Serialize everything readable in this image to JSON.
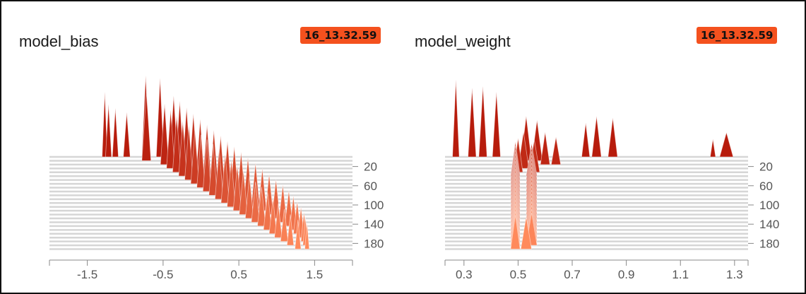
{
  "colors": {
    "old": "#b71c0c",
    "new": "#ff8a5c",
    "baseline": "#d6d6d6",
    "axis": "#888888",
    "tick_text": "#555555",
    "badge": "#f4511e"
  },
  "panels": [
    {
      "title": "model_bias",
      "run": "16_13.32.59"
    },
    {
      "title": "model_weight",
      "run": "16_13.32.59"
    }
  ],
  "chart_data": [
    {
      "type": "histogram-offset",
      "title": "model_bias",
      "xlim": [
        -2.0,
        2.0
      ],
      "x_ticks": [
        -1.5,
        -0.5,
        0.5,
        1.5
      ],
      "x_tick_labels": [
        "-1.5",
        "-0.5",
        "0.5",
        "1.5"
      ],
      "step_range": [
        0,
        200
      ],
      "y_ticks": [
        20,
        60,
        100,
        140,
        180
      ],
      "y_tick_labels": [
        "20",
        "60",
        "100",
        "140",
        "180"
      ],
      "series": [
        {
          "step": 0,
          "peaks": [
            {
              "x": -1.27,
              "w": 0.07,
              "h": 0.8
            },
            {
              "x": -1.22,
              "w": 0.08,
              "h": 0.65
            },
            {
              "x": -1.13,
              "w": 0.08,
              "h": 0.6
            },
            {
              "x": -0.98,
              "w": 0.09,
              "h": 0.55
            },
            {
              "x": -0.73,
              "w": 0.1,
              "h": 1.0
            },
            {
              "x": -0.54,
              "w": 0.1,
              "h": 0.97
            }
          ]
        },
        {
          "step": 8,
          "peaks": [
            {
              "x": -0.72,
              "w": 0.12,
              "h": 0.85
            },
            {
              "x": -0.36,
              "w": 0.11,
              "h": 0.8
            }
          ]
        },
        {
          "step": 16,
          "peaks": [
            {
              "x": -0.48,
              "w": 0.11,
              "h": 0.75
            },
            {
              "x": -0.28,
              "w": 0.11,
              "h": 0.78
            }
          ]
        },
        {
          "step": 24,
          "peaks": [
            {
              "x": -0.4,
              "w": 0.11,
              "h": 0.72
            },
            {
              "x": -0.19,
              "w": 0.11,
              "h": 0.75
            }
          ]
        },
        {
          "step": 32,
          "peaks": [
            {
              "x": -0.32,
              "w": 0.11,
              "h": 0.7
            },
            {
              "x": -0.1,
              "w": 0.11,
              "h": 0.72
            }
          ]
        },
        {
          "step": 40,
          "peaks": [
            {
              "x": -0.24,
              "w": 0.11,
              "h": 0.68
            },
            {
              "x": -0.01,
              "w": 0.11,
              "h": 0.7
            }
          ]
        },
        {
          "step": 48,
          "peaks": [
            {
              "x": -0.16,
              "w": 0.11,
              "h": 0.67
            },
            {
              "x": 0.08,
              "w": 0.11,
              "h": 0.68
            }
          ]
        },
        {
          "step": 56,
          "peaks": [
            {
              "x": -0.08,
              "w": 0.11,
              "h": 0.66
            },
            {
              "x": 0.17,
              "w": 0.11,
              "h": 0.66
            }
          ]
        },
        {
          "step": 64,
          "peaks": [
            {
              "x": 0.0,
              "w": 0.11,
              "h": 0.65
            },
            {
              "x": 0.26,
              "w": 0.11,
              "h": 0.64
            }
          ]
        },
        {
          "step": 72,
          "peaks": [
            {
              "x": 0.08,
              "w": 0.11,
              "h": 0.64
            },
            {
              "x": 0.35,
              "w": 0.11,
              "h": 0.62
            }
          ]
        },
        {
          "step": 80,
          "peaks": [
            {
              "x": 0.16,
              "w": 0.11,
              "h": 0.63
            },
            {
              "x": 0.44,
              "w": 0.11,
              "h": 0.6
            }
          ]
        },
        {
          "step": 88,
          "peaks": [
            {
              "x": 0.24,
              "w": 0.11,
              "h": 0.62
            },
            {
              "x": 0.53,
              "w": 0.11,
              "h": 0.58
            }
          ]
        },
        {
          "step": 96,
          "peaks": [
            {
              "x": 0.32,
              "w": 0.11,
              "h": 0.6
            },
            {
              "x": 0.62,
              "w": 0.11,
              "h": 0.56
            }
          ]
        },
        {
          "step": 104,
          "peaks": [
            {
              "x": 0.4,
              "w": 0.11,
              "h": 0.58
            },
            {
              "x": 0.72,
              "w": 0.11,
              "h": 0.54
            }
          ]
        },
        {
          "step": 112,
          "peaks": [
            {
              "x": 0.48,
              "w": 0.11,
              "h": 0.56
            },
            {
              "x": 0.81,
              "w": 0.11,
              "h": 0.52
            }
          ]
        },
        {
          "step": 120,
          "peaks": [
            {
              "x": 0.56,
              "w": 0.11,
              "h": 0.54
            },
            {
              "x": 0.9,
              "w": 0.11,
              "h": 0.5
            }
          ]
        },
        {
          "step": 128,
          "peaks": [
            {
              "x": 0.64,
              "w": 0.11,
              "h": 0.52
            },
            {
              "x": 0.99,
              "w": 0.11,
              "h": 0.48
            }
          ]
        },
        {
          "step": 136,
          "peaks": [
            {
              "x": 0.72,
              "w": 0.11,
              "h": 0.5
            },
            {
              "x": 1.08,
              "w": 0.11,
              "h": 0.46
            }
          ]
        },
        {
          "step": 144,
          "peaks": [
            {
              "x": 0.8,
              "w": 0.11,
              "h": 0.48
            },
            {
              "x": 1.16,
              "w": 0.11,
              "h": 0.44
            }
          ]
        },
        {
          "step": 152,
          "peaks": [
            {
              "x": 0.88,
              "w": 0.11,
              "h": 0.46
            },
            {
              "x": 1.22,
              "w": 0.1,
              "h": 0.42
            }
          ]
        },
        {
          "step": 160,
          "peaks": [
            {
              "x": 0.95,
              "w": 0.1,
              "h": 0.44
            },
            {
              "x": 1.27,
              "w": 0.1,
              "h": 0.4
            }
          ]
        },
        {
          "step": 168,
          "peaks": [
            {
              "x": 1.02,
              "w": 0.1,
              "h": 0.42
            },
            {
              "x": 1.32,
              "w": 0.09,
              "h": 0.38
            }
          ]
        },
        {
          "step": 176,
          "peaks": [
            {
              "x": 1.1,
              "w": 0.1,
              "h": 0.4
            },
            {
              "x": 1.36,
              "w": 0.08,
              "h": 0.36
            }
          ]
        },
        {
          "step": 184,
          "peaks": [
            {
              "x": 1.18,
              "w": 0.09,
              "h": 0.38
            },
            {
              "x": 1.38,
              "w": 0.07,
              "h": 0.34
            }
          ]
        },
        {
          "step": 192,
          "peaks": [
            {
              "x": 1.28,
              "w": 0.08,
              "h": 0.36
            },
            {
              "x": 1.4,
              "w": 0.06,
              "h": 0.32
            }
          ]
        }
      ]
    },
    {
      "type": "histogram-offset",
      "title": "model_weight",
      "xlim": [
        0.23,
        1.35
      ],
      "x_ticks": [
        0.3,
        0.5,
        0.7,
        0.9,
        1.1,
        1.3
      ],
      "x_tick_labels": [
        "0.3",
        "0.5",
        "0.7",
        "0.9",
        "1.1",
        "1.3"
      ],
      "step_range": [
        0,
        200
      ],
      "y_ticks": [
        20,
        60,
        100,
        140,
        180
      ],
      "y_tick_labels": [
        "20",
        "60",
        "100",
        "140",
        "180"
      ],
      "series": [
        {
          "step": 0,
          "peaks": [
            {
              "x": 0.27,
              "w": 0.025,
              "h": 0.95
            },
            {
              "x": 0.33,
              "w": 0.03,
              "h": 0.85
            },
            {
              "x": 0.37,
              "w": 0.03,
              "h": 0.87
            },
            {
              "x": 0.42,
              "w": 0.03,
              "h": 0.8
            },
            {
              "x": 0.75,
              "w": 0.03,
              "h": 0.42
            },
            {
              "x": 0.79,
              "w": 0.035,
              "h": 0.5
            },
            {
              "x": 0.85,
              "w": 0.035,
              "h": 0.48
            },
            {
              "x": 1.22,
              "w": 0.02,
              "h": 0.22
            },
            {
              "x": 1.27,
              "w": 0.05,
              "h": 0.3
            }
          ]
        },
        {
          "step": 8,
          "peaks": [
            {
              "x": 0.53,
              "w": 0.04,
              "h": 0.55
            },
            {
              "x": 0.57,
              "w": 0.04,
              "h": 0.5
            }
          ]
        },
        {
          "step": 16,
          "peaks": [
            {
              "x": 0.6,
              "w": 0.035,
              "h": 0.4
            },
            {
              "x": 0.64,
              "w": 0.035,
              "h": 0.34
            }
          ]
        },
        {
          "step": 24,
          "peaks": [
            {
              "x": 0.52,
              "w": 0.04,
              "h": 0.45
            }
          ]
        },
        {
          "step": 32,
          "peaks": [
            {
              "x": 0.5,
              "w": 0.035,
              "h": 0.42
            },
            {
              "x": 0.56,
              "w": 0.04,
              "h": 0.4
            }
          ]
        },
        {
          "step": 40,
          "peaks": [
            {
              "x": 0.49,
              "w": 0.035,
              "h": 0.42
            },
            {
              "x": 0.55,
              "w": 0.04,
              "h": 0.4
            }
          ]
        },
        {
          "step": 48,
          "peaks": [
            {
              "x": 0.49,
              "w": 0.035,
              "h": 0.42
            },
            {
              "x": 0.55,
              "w": 0.04,
              "h": 0.4
            }
          ]
        },
        {
          "step": 56,
          "peaks": [
            {
              "x": 0.49,
              "w": 0.035,
              "h": 0.42
            },
            {
              "x": 0.55,
              "w": 0.04,
              "h": 0.4
            }
          ]
        },
        {
          "step": 64,
          "peaks": [
            {
              "x": 0.49,
              "w": 0.035,
              "h": 0.42
            },
            {
              "x": 0.55,
              "w": 0.04,
              "h": 0.4
            }
          ]
        },
        {
          "step": 72,
          "peaks": [
            {
              "x": 0.49,
              "w": 0.035,
              "h": 0.42
            },
            {
              "x": 0.55,
              "w": 0.04,
              "h": 0.4
            }
          ]
        },
        {
          "step": 80,
          "peaks": [
            {
              "x": 0.49,
              "w": 0.035,
              "h": 0.42
            },
            {
              "x": 0.55,
              "w": 0.04,
              "h": 0.4
            }
          ]
        },
        {
          "step": 88,
          "peaks": [
            {
              "x": 0.49,
              "w": 0.035,
              "h": 0.42
            },
            {
              "x": 0.55,
              "w": 0.04,
              "h": 0.4
            }
          ]
        },
        {
          "step": 96,
          "peaks": [
            {
              "x": 0.49,
              "w": 0.035,
              "h": 0.42
            },
            {
              "x": 0.55,
              "w": 0.04,
              "h": 0.4
            }
          ]
        },
        {
          "step": 104,
          "peaks": [
            {
              "x": 0.49,
              "w": 0.035,
              "h": 0.42
            },
            {
              "x": 0.55,
              "w": 0.04,
              "h": 0.4
            }
          ]
        },
        {
          "step": 112,
          "peaks": [
            {
              "x": 0.49,
              "w": 0.035,
              "h": 0.42
            },
            {
              "x": 0.55,
              "w": 0.04,
              "h": 0.4
            }
          ]
        },
        {
          "step": 120,
          "peaks": [
            {
              "x": 0.49,
              "w": 0.035,
              "h": 0.42
            },
            {
              "x": 0.55,
              "w": 0.04,
              "h": 0.4
            }
          ]
        },
        {
          "step": 128,
          "peaks": [
            {
              "x": 0.49,
              "w": 0.035,
              "h": 0.42
            },
            {
              "x": 0.55,
              "w": 0.04,
              "h": 0.4
            }
          ]
        },
        {
          "step": 136,
          "peaks": [
            {
              "x": 0.49,
              "w": 0.035,
              "h": 0.42
            },
            {
              "x": 0.55,
              "w": 0.04,
              "h": 0.4
            }
          ]
        },
        {
          "step": 144,
          "peaks": [
            {
              "x": 0.49,
              "w": 0.035,
              "h": 0.42
            },
            {
              "x": 0.55,
              "w": 0.04,
              "h": 0.4
            }
          ]
        },
        {
          "step": 152,
          "peaks": [
            {
              "x": 0.49,
              "w": 0.035,
              "h": 0.42
            },
            {
              "x": 0.55,
              "w": 0.04,
              "h": 0.4
            }
          ]
        },
        {
          "step": 160,
          "peaks": [
            {
              "x": 0.49,
              "w": 0.035,
              "h": 0.42
            },
            {
              "x": 0.55,
              "w": 0.04,
              "h": 0.4
            }
          ]
        },
        {
          "step": 168,
          "peaks": [
            {
              "x": 0.49,
              "w": 0.035,
              "h": 0.42
            },
            {
              "x": 0.55,
              "w": 0.04,
              "h": 0.4
            }
          ]
        },
        {
          "step": 176,
          "peaks": [
            {
              "x": 0.49,
              "w": 0.035,
              "h": 0.42
            },
            {
              "x": 0.55,
              "w": 0.04,
              "h": 0.4
            }
          ]
        },
        {
          "step": 184,
          "peaks": [
            {
              "x": 0.49,
              "w": 0.035,
              "h": 0.42
            },
            {
              "x": 0.55,
              "w": 0.04,
              "h": 0.4
            }
          ]
        },
        {
          "step": 192,
          "peaks": [
            {
              "x": 0.49,
              "w": 0.035,
              "h": 0.42
            },
            {
              "x": 0.53,
              "w": 0.04,
              "h": 0.4
            }
          ]
        }
      ]
    }
  ]
}
